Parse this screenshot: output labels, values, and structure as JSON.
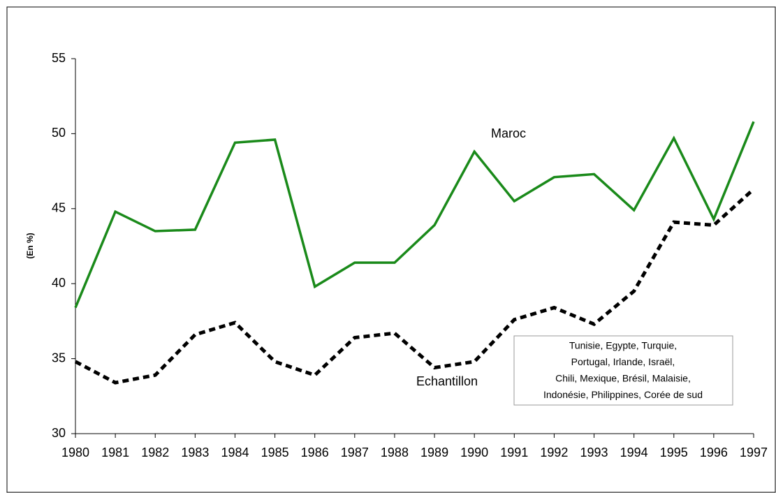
{
  "chart_data": {
    "type": "line",
    "ylabel": "(En %)",
    "categories": [
      "1980",
      "1981",
      "1982",
      "1983",
      "1984",
      "1985",
      "1986",
      "1987",
      "1988",
      "1989",
      "1990",
      "1991",
      "1992",
      "1993",
      "1994",
      "1995",
      "1996",
      "1997"
    ],
    "series": [
      {
        "name": "Maroc",
        "color": "#1a8a1a",
        "dashed": false,
        "values": [
          38.4,
          44.8,
          43.5,
          43.6,
          49.4,
          49.6,
          39.8,
          41.4,
          41.4,
          43.9,
          48.8,
          45.5,
          47.1,
          47.3,
          44.9,
          49.7,
          44.3,
          50.8
        ]
      },
      {
        "name": "Echantillon",
        "color": "#000000",
        "dashed": true,
        "values": [
          34.8,
          33.4,
          33.9,
          36.6,
          37.4,
          34.8,
          33.9,
          36.4,
          36.7,
          34.4,
          34.8,
          37.6,
          38.4,
          37.3,
          39.5,
          44.1,
          43.9,
          46.3
        ]
      }
    ],
    "note": [
      "Tunisie, Egypte, Turquie,",
      "Portugal, Irlande, Israël,",
      "Chili, Mexique, Brésil, Malaisie,",
      "Indonésie, Philippines, Corée de sud"
    ],
    "ylim": [
      30,
      55
    ],
    "yticks": [
      30,
      35,
      40,
      45,
      50,
      55
    ],
    "grid": false
  }
}
